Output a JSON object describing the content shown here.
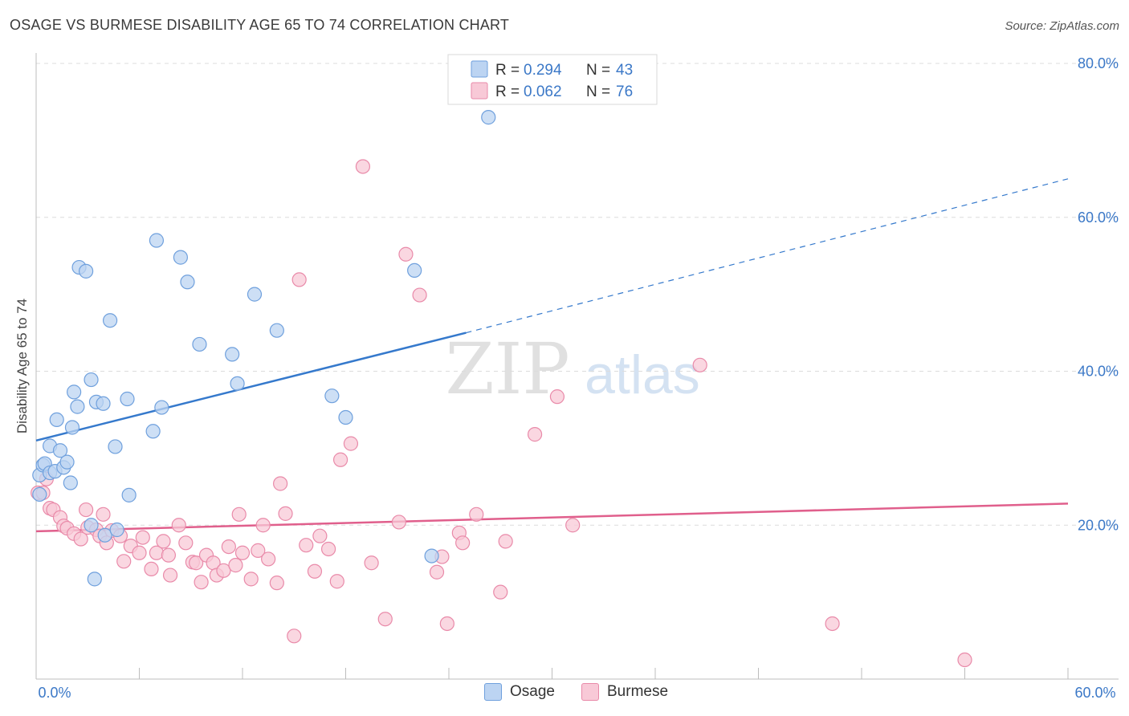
{
  "title": "OSAGE VS BURMESE DISABILITY AGE 65 TO 74 CORRELATION CHART",
  "source": "Source: ZipAtlas.com",
  "watermark": {
    "zip": "ZIP",
    "atlas": "atlas"
  },
  "chart_data": {
    "type": "scatter",
    "ylabel": "Disability Age 65 to 74",
    "xlim": [
      0,
      60
    ],
    "ylim": [
      0,
      80
    ],
    "x_tick_labels": {
      "left": "0.0%",
      "right": "60.0%"
    },
    "y_ticks": [
      {
        "value": 80,
        "label": "80.0%"
      },
      {
        "value": 60,
        "label": "60.0%"
      },
      {
        "value": 40,
        "label": "40.0%"
      },
      {
        "value": 20,
        "label": "20.0%"
      }
    ],
    "grid": "dashed horizontal",
    "legend_position": "top-center",
    "stats": [
      {
        "r_label": "R =",
        "r_value": "0.294",
        "n_label": "N =",
        "n_value": "43"
      },
      {
        "r_label": "R =",
        "r_value": "0.062",
        "n_label": "N =",
        "n_value": "76"
      }
    ],
    "series": [
      {
        "name": "Osage",
        "color": "#6fa0dd",
        "fill": "#bcd4f2",
        "line_color": "#3579cc",
        "trend": {
          "x0": 0,
          "y0": 31.0,
          "x1": 25.0,
          "y1": 45.0,
          "x_ext": 60,
          "y_ext": 65.0
        },
        "points": [
          [
            0.2,
            24.0
          ],
          [
            0.2,
            26.5
          ],
          [
            0.4,
            27.8
          ],
          [
            0.5,
            28.0
          ],
          [
            0.8,
            26.8
          ],
          [
            0.8,
            30.3
          ],
          [
            1.1,
            27.0
          ],
          [
            1.2,
            33.7
          ],
          [
            1.4,
            29.7
          ],
          [
            1.6,
            27.5
          ],
          [
            1.8,
            28.2
          ],
          [
            2.0,
            25.5
          ],
          [
            2.1,
            32.7
          ],
          [
            2.2,
            37.3
          ],
          [
            2.4,
            35.4
          ],
          [
            2.5,
            53.5
          ],
          [
            2.9,
            53.0
          ],
          [
            3.2,
            38.9
          ],
          [
            3.2,
            20.0
          ],
          [
            3.4,
            13.0
          ],
          [
            3.5,
            36.0
          ],
          [
            3.9,
            35.8
          ],
          [
            4.0,
            18.7
          ],
          [
            4.3,
            46.6
          ],
          [
            4.6,
            30.2
          ],
          [
            4.7,
            19.4
          ],
          [
            5.3,
            36.4
          ],
          [
            5.4,
            23.9
          ],
          [
            6.8,
            32.2
          ],
          [
            7.0,
            57.0
          ],
          [
            7.3,
            35.3
          ],
          [
            8.4,
            54.8
          ],
          [
            8.8,
            51.6
          ],
          [
            9.5,
            43.5
          ],
          [
            11.4,
            42.2
          ],
          [
            11.7,
            38.4
          ],
          [
            12.7,
            50.0
          ],
          [
            14.0,
            45.3
          ],
          [
            17.2,
            36.8
          ],
          [
            18.0,
            34.0
          ],
          [
            22.0,
            53.1
          ],
          [
            23.0,
            16.0
          ],
          [
            26.3,
            73.0
          ]
        ]
      },
      {
        "name": "Burmese",
        "color": "#e98aa9",
        "fill": "#f8c9d7",
        "line_color": "#e05f8c",
        "trend": {
          "x0": 0,
          "y0": 19.2,
          "x1": 60,
          "y1": 22.8
        },
        "points": [
          [
            0.1,
            24.2
          ],
          [
            0.4,
            24.2
          ],
          [
            0.6,
            26.0
          ],
          [
            0.8,
            22.2
          ],
          [
            1.0,
            22.0
          ],
          [
            1.4,
            21.0
          ],
          [
            1.6,
            19.9
          ],
          [
            1.8,
            19.6
          ],
          [
            2.2,
            18.9
          ],
          [
            2.6,
            18.2
          ],
          [
            2.9,
            22.0
          ],
          [
            3.0,
            19.7
          ],
          [
            3.5,
            19.4
          ],
          [
            3.7,
            18.6
          ],
          [
            3.9,
            21.4
          ],
          [
            4.1,
            17.7
          ],
          [
            4.4,
            19.3
          ],
          [
            4.9,
            18.6
          ],
          [
            5.1,
            15.3
          ],
          [
            5.5,
            17.3
          ],
          [
            6.0,
            16.4
          ],
          [
            6.2,
            18.4
          ],
          [
            6.7,
            14.3
          ],
          [
            7.0,
            16.4
          ],
          [
            7.4,
            17.9
          ],
          [
            7.7,
            16.1
          ],
          [
            7.8,
            13.5
          ],
          [
            8.3,
            20.0
          ],
          [
            8.7,
            17.7
          ],
          [
            9.1,
            15.2
          ],
          [
            9.3,
            15.1
          ],
          [
            9.6,
            12.6
          ],
          [
            9.9,
            16.1
          ],
          [
            10.3,
            15.1
          ],
          [
            10.5,
            13.5
          ],
          [
            10.9,
            14.1
          ],
          [
            11.2,
            17.2
          ],
          [
            11.6,
            14.8
          ],
          [
            11.8,
            21.4
          ],
          [
            12.0,
            16.4
          ],
          [
            12.5,
            13.0
          ],
          [
            12.9,
            16.7
          ],
          [
            13.2,
            20.0
          ],
          [
            13.5,
            15.6
          ],
          [
            14.0,
            12.5
          ],
          [
            14.2,
            25.4
          ],
          [
            14.5,
            21.5
          ],
          [
            15.0,
            5.6
          ],
          [
            15.3,
            51.9
          ],
          [
            15.7,
            17.4
          ],
          [
            16.2,
            14.0
          ],
          [
            16.5,
            18.6
          ],
          [
            17.0,
            16.9
          ],
          [
            17.5,
            12.7
          ],
          [
            17.7,
            28.5
          ],
          [
            18.3,
            30.6
          ],
          [
            19.0,
            66.6
          ],
          [
            19.5,
            15.1
          ],
          [
            20.3,
            7.8
          ],
          [
            21.1,
            20.4
          ],
          [
            21.5,
            55.2
          ],
          [
            22.3,
            49.9
          ],
          [
            23.3,
            13.9
          ],
          [
            23.6,
            15.9
          ],
          [
            23.9,
            7.2
          ],
          [
            24.6,
            19.0
          ],
          [
            24.8,
            17.7
          ],
          [
            25.6,
            21.4
          ],
          [
            27.0,
            11.3
          ],
          [
            27.3,
            17.9
          ],
          [
            29.0,
            31.8
          ],
          [
            30.3,
            36.7
          ],
          [
            31.2,
            20.0
          ],
          [
            38.6,
            40.8
          ],
          [
            46.3,
            7.2
          ],
          [
            54.0,
            2.5
          ]
        ]
      }
    ]
  }
}
